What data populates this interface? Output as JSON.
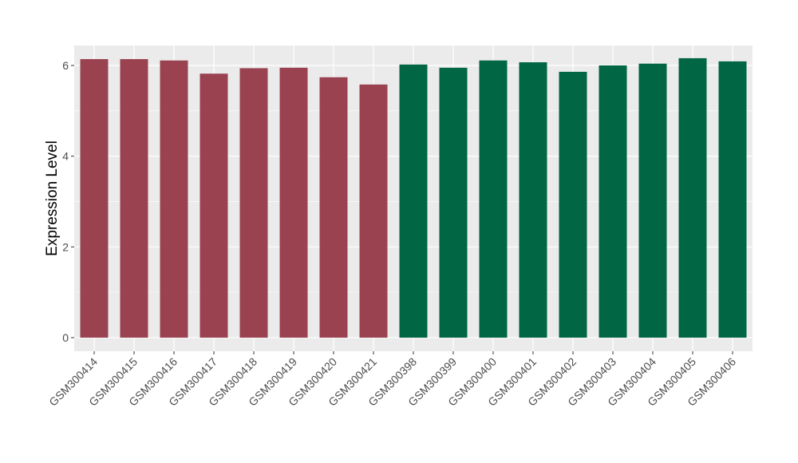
{
  "chart_data": {
    "type": "bar",
    "title": "",
    "xlabel": "",
    "ylabel": "Expression Level",
    "ylim": [
      -0.3,
      6.44
    ],
    "yticks": [
      0,
      2,
      4,
      6
    ],
    "grid": true,
    "legend": "none",
    "panel_background": "#ebebeb",
    "gridline_color": "#ffffff",
    "categories": [
      "GSM300414",
      "GSM300415",
      "GSM300416",
      "GSM300417",
      "GSM300418",
      "GSM300419",
      "GSM300420",
      "GSM300421",
      "GSM300398",
      "GSM300399",
      "GSM300400",
      "GSM300401",
      "GSM300402",
      "GSM300403",
      "GSM300404",
      "GSM300405",
      "GSM300406"
    ],
    "values": [
      6.14,
      6.14,
      6.11,
      5.82,
      5.94,
      5.95,
      5.74,
      5.58,
      6.02,
      5.95,
      6.11,
      6.07,
      5.86,
      6.0,
      6.04,
      6.16,
      6.09
    ],
    "bar_colors": [
      "#9a4250",
      "#9a4250",
      "#9a4250",
      "#9a4250",
      "#9a4250",
      "#9a4250",
      "#9a4250",
      "#9a4250",
      "#006644",
      "#006644",
      "#006644",
      "#006644",
      "#006644",
      "#006644",
      "#006644",
      "#006644",
      "#006644"
    ]
  }
}
